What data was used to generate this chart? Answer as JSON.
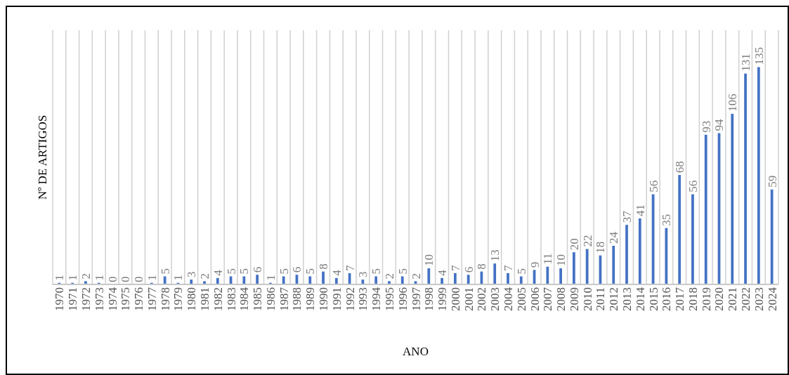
{
  "chart_data": {
    "type": "bar",
    "xlabel": "ANO",
    "ylabel": "Nº DE ARTIGOS",
    "categories": [
      "1970",
      "1971",
      "1972",
      "1973",
      "1974",
      "1975",
      "1976",
      "1977",
      "1978",
      "1979",
      "1980",
      "1981",
      "1982",
      "1983",
      "1984",
      "1985",
      "1986",
      "1987",
      "1988",
      "1989",
      "1990",
      "1991",
      "1992",
      "1993",
      "1994",
      "1995",
      "1996",
      "1997",
      "1998",
      "1999",
      "2000",
      "2001",
      "2002",
      "2003",
      "2004",
      "2005",
      "2006",
      "2007",
      "2008",
      "2009",
      "2010",
      "2011",
      "2012",
      "2013",
      "2014",
      "2015",
      "2016",
      "2017",
      "2018",
      "2019",
      "2020",
      "2021",
      "2022",
      "2023",
      "2024"
    ],
    "values": [
      1,
      1,
      2,
      1,
      0,
      0,
      0,
      1,
      5,
      1,
      3,
      2,
      4,
      5,
      5,
      6,
      1,
      5,
      6,
      5,
      8,
      4,
      7,
      3,
      5,
      2,
      5,
      2,
      10,
      4,
      7,
      6,
      8,
      13,
      7,
      5,
      9,
      11,
      10,
      20,
      22,
      18,
      24,
      37,
      41,
      56,
      35,
      68,
      56,
      93,
      94,
      106,
      131,
      135,
      59
    ],
    "color": "#4472c4",
    "data_labels": true,
    "grid": "x",
    "tick_labels": "x"
  }
}
